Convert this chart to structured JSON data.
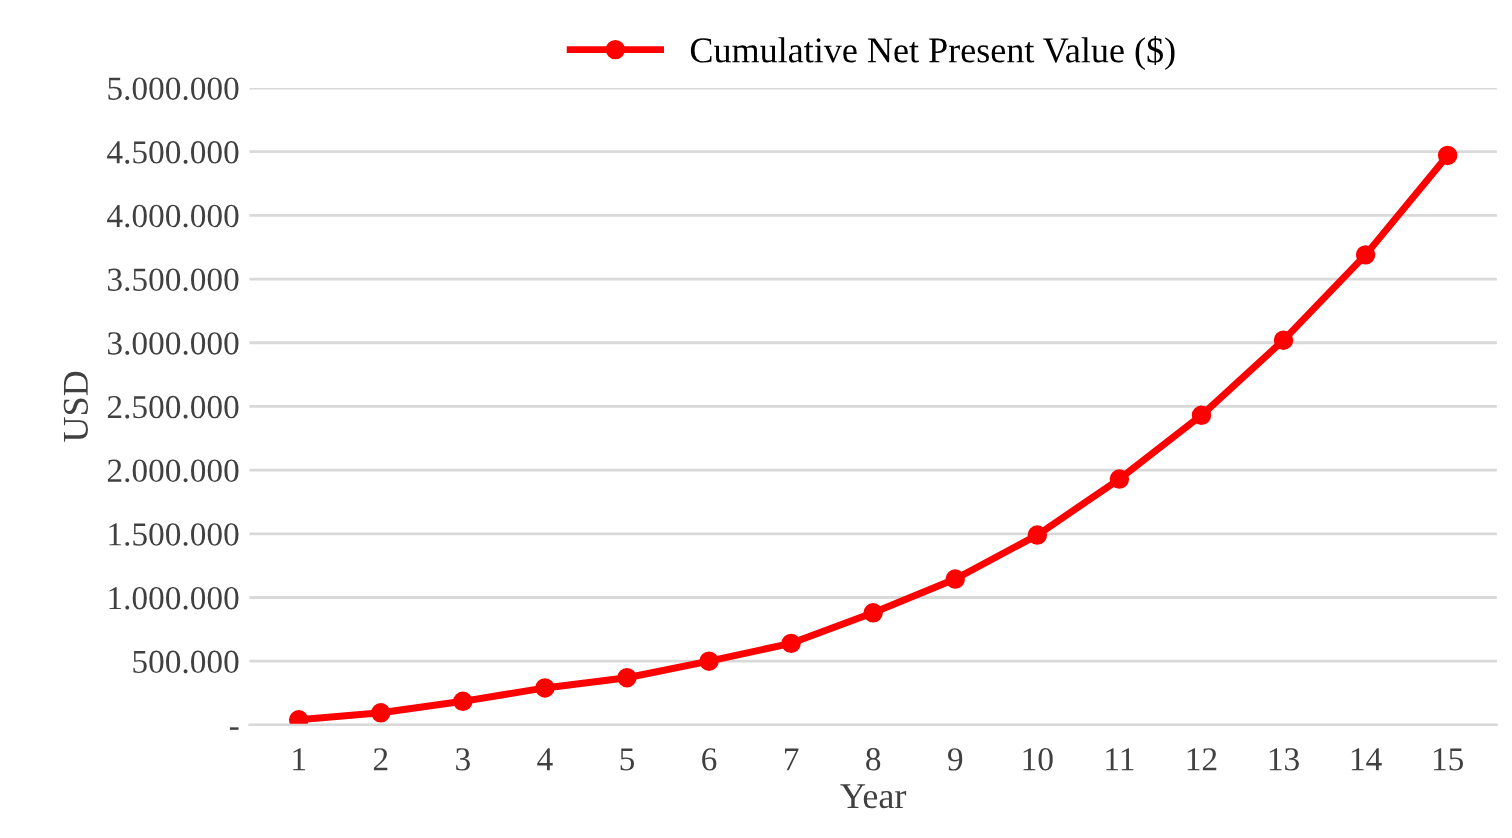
{
  "chart_data": {
    "type": "line",
    "xlabel": "Year",
    "ylabel": "USD",
    "categories": [
      "1",
      "2",
      "3",
      "4",
      "5",
      "6",
      "7",
      "8",
      "9",
      "10",
      "11",
      "12",
      "13",
      "14",
      "15"
    ],
    "series": [
      {
        "name": "Cumulative Net Present Value ($)",
        "color": "#ff0000",
        "values": [
          40000,
          95000,
          185000,
          290000,
          370000,
          500000,
          640000,
          880000,
          1145000,
          1490000,
          1930000,
          2430000,
          3020000,
          3690000,
          4470000
        ]
      }
    ],
    "ylim": [
      0,
      5000000
    ],
    "yticks": [
      {
        "value": 0,
        "label": "-"
      },
      {
        "value": 500000,
        "label": "500.000"
      },
      {
        "value": 1000000,
        "label": "1.000.000"
      },
      {
        "value": 1500000,
        "label": "1.500.000"
      },
      {
        "value": 2000000,
        "label": "2.000.000"
      },
      {
        "value": 2500000,
        "label": "2.500.000"
      },
      {
        "value": 3000000,
        "label": "3.000.000"
      },
      {
        "value": 3500000,
        "label": "3.500.000"
      },
      {
        "value": 4000000,
        "label": "4.000.000"
      },
      {
        "value": 4500000,
        "label": "4.500.000"
      },
      {
        "value": 5000000,
        "label": "5.000.000"
      }
    ],
    "grid": "y",
    "legend": "top",
    "marker": "circle",
    "line_style": "solid"
  }
}
